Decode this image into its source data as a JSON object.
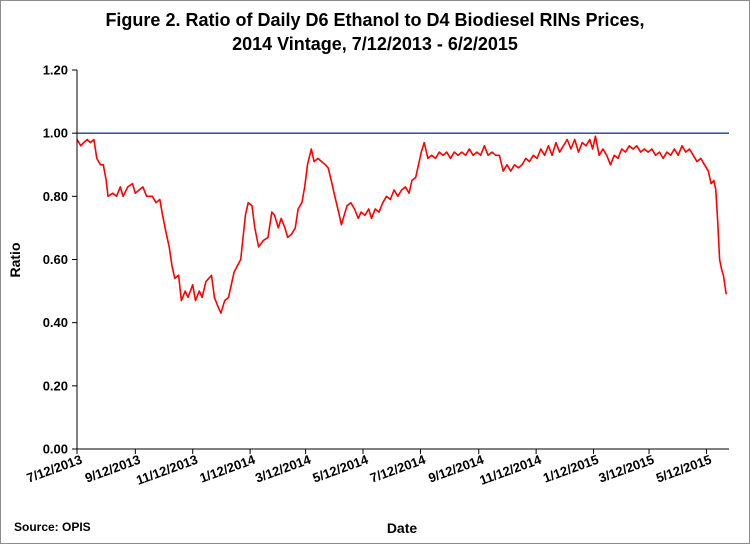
{
  "chart_data": {
    "type": "line",
    "title": "Figure 2. Ratio of Daily D6 Ethanol to D4 Biodiesel RINs Prices,",
    "subtitle": "2014 Vintage, 7/12/2013 - 6/2/2015",
    "xlabel": "Date",
    "ylabel": "Ratio",
    "source": "Source: OPIS",
    "ylim": [
      0,
      1.2
    ],
    "y_ticks": [
      "0.00",
      "0.20",
      "0.40",
      "0.60",
      "0.80",
      "1.00",
      "1.20"
    ],
    "x_ticks": [
      "7/12/2013",
      "9/12/2013",
      "11/12/2013",
      "1/12/2014",
      "3/12/2014",
      "5/12/2014",
      "7/12/2014",
      "9/12/2014",
      "11/12/2014",
      "1/12/2015",
      "3/12/2015",
      "5/12/2015"
    ],
    "xlim": [
      "2013-07-12",
      "2015-06-05"
    ],
    "grid": false,
    "legend": "none",
    "reference_line": {
      "y": 1.0,
      "color": "#1f3f7a"
    },
    "series": [
      {
        "color": "#ff0000",
        "points": [
          [
            "2013-07-12",
            0.98
          ],
          [
            "2013-07-16",
            0.96
          ],
          [
            "2013-07-19",
            0.97
          ],
          [
            "2013-07-23",
            0.98
          ],
          [
            "2013-07-26",
            0.97
          ],
          [
            "2013-07-30",
            0.98
          ],
          [
            "2013-08-02",
            0.92
          ],
          [
            "2013-08-06",
            0.9
          ],
          [
            "2013-08-09",
            0.9
          ],
          [
            "2013-08-12",
            0.85
          ],
          [
            "2013-08-14",
            0.8
          ],
          [
            "2013-08-19",
            0.81
          ],
          [
            "2013-08-23",
            0.8
          ],
          [
            "2013-08-27",
            0.83
          ],
          [
            "2013-08-30",
            0.8
          ],
          [
            "2013-09-04",
            0.83
          ],
          [
            "2013-09-09",
            0.84
          ],
          [
            "2013-09-12",
            0.81
          ],
          [
            "2013-09-16",
            0.82
          ],
          [
            "2013-09-20",
            0.83
          ],
          [
            "2013-09-24",
            0.8
          ],
          [
            "2013-09-30",
            0.8
          ],
          [
            "2013-10-04",
            0.78
          ],
          [
            "2013-10-08",
            0.79
          ],
          [
            "2013-10-11",
            0.74
          ],
          [
            "2013-10-15",
            0.68
          ],
          [
            "2013-10-18",
            0.64
          ],
          [
            "2013-10-21",
            0.58
          ],
          [
            "2013-10-24",
            0.54
          ],
          [
            "2013-10-28",
            0.55
          ],
          [
            "2013-10-31",
            0.47
          ],
          [
            "2013-11-04",
            0.5
          ],
          [
            "2013-11-07",
            0.48
          ],
          [
            "2013-11-12",
            0.52
          ],
          [
            "2013-11-15",
            0.47
          ],
          [
            "2013-11-19",
            0.5
          ],
          [
            "2013-11-22",
            0.48
          ],
          [
            "2013-11-26",
            0.53
          ],
          [
            "2013-12-02",
            0.55
          ],
          [
            "2013-12-05",
            0.48
          ],
          [
            "2013-12-09",
            0.45
          ],
          [
            "2013-12-12",
            0.43
          ],
          [
            "2013-12-16",
            0.47
          ],
          [
            "2013-12-20",
            0.48
          ],
          [
            "2013-12-26",
            0.56
          ],
          [
            "2014-01-02",
            0.6
          ],
          [
            "2014-01-07",
            0.74
          ],
          [
            "2014-01-10",
            0.78
          ],
          [
            "2014-01-14",
            0.77
          ],
          [
            "2014-01-17",
            0.7
          ],
          [
            "2014-01-21",
            0.64
          ],
          [
            "2014-01-26",
            0.66
          ],
          [
            "2014-01-31",
            0.67
          ],
          [
            "2014-02-04",
            0.75
          ],
          [
            "2014-02-07",
            0.74
          ],
          [
            "2014-02-11",
            0.7
          ],
          [
            "2014-02-14",
            0.73
          ],
          [
            "2014-02-18",
            0.7
          ],
          [
            "2014-02-21",
            0.67
          ],
          [
            "2014-02-25",
            0.68
          ],
          [
            "2014-03-01",
            0.7
          ],
          [
            "2014-03-04",
            0.76
          ],
          [
            "2014-03-08",
            0.78
          ],
          [
            "2014-03-11",
            0.83
          ],
          [
            "2014-03-14",
            0.9
          ],
          [
            "2014-03-18",
            0.95
          ],
          [
            "2014-03-21",
            0.91
          ],
          [
            "2014-03-25",
            0.92
          ],
          [
            "2014-03-29",
            0.91
          ],
          [
            "2014-04-02",
            0.9
          ],
          [
            "2014-04-05",
            0.89
          ],
          [
            "2014-04-09",
            0.84
          ],
          [
            "2014-04-12",
            0.8
          ],
          [
            "2014-04-16",
            0.75
          ],
          [
            "2014-04-19",
            0.71
          ],
          [
            "2014-04-22",
            0.74
          ],
          [
            "2014-04-25",
            0.77
          ],
          [
            "2014-04-29",
            0.78
          ],
          [
            "2014-05-03",
            0.76
          ],
          [
            "2014-05-07",
            0.73
          ],
          [
            "2014-05-10",
            0.75
          ],
          [
            "2014-05-14",
            0.74
          ],
          [
            "2014-05-18",
            0.76
          ],
          [
            "2014-05-21",
            0.73
          ],
          [
            "2014-05-25",
            0.76
          ],
          [
            "2014-05-29",
            0.75
          ],
          [
            "2014-06-02",
            0.78
          ],
          [
            "2014-06-06",
            0.8
          ],
          [
            "2014-06-10",
            0.79
          ],
          [
            "2014-06-14",
            0.82
          ],
          [
            "2014-06-18",
            0.8
          ],
          [
            "2014-06-22",
            0.82
          ],
          [
            "2014-06-26",
            0.83
          ],
          [
            "2014-06-30",
            0.81
          ],
          [
            "2014-07-03",
            0.85
          ],
          [
            "2014-07-07",
            0.86
          ],
          [
            "2014-07-10",
            0.9
          ],
          [
            "2014-07-13",
            0.94
          ],
          [
            "2014-07-16",
            0.97
          ],
          [
            "2014-07-20",
            0.92
          ],
          [
            "2014-07-24",
            0.93
          ],
          [
            "2014-07-28",
            0.92
          ],
          [
            "2014-08-01",
            0.94
          ],
          [
            "2014-08-05",
            0.93
          ],
          [
            "2014-08-09",
            0.94
          ],
          [
            "2014-08-13",
            0.92
          ],
          [
            "2014-08-17",
            0.94
          ],
          [
            "2014-08-21",
            0.93
          ],
          [
            "2014-08-25",
            0.94
          ],
          [
            "2014-08-29",
            0.93
          ],
          [
            "2014-09-02",
            0.95
          ],
          [
            "2014-09-06",
            0.93
          ],
          [
            "2014-09-10",
            0.94
          ],
          [
            "2014-09-14",
            0.93
          ],
          [
            "2014-09-18",
            0.96
          ],
          [
            "2014-09-22",
            0.93
          ],
          [
            "2014-09-26",
            0.94
          ],
          [
            "2014-09-30",
            0.93
          ],
          [
            "2014-10-04",
            0.93
          ],
          [
            "2014-10-08",
            0.88
          ],
          [
            "2014-10-12",
            0.9
          ],
          [
            "2014-10-16",
            0.88
          ],
          [
            "2014-10-20",
            0.9
          ],
          [
            "2014-10-24",
            0.89
          ],
          [
            "2014-10-28",
            0.9
          ],
          [
            "2014-11-01",
            0.92
          ],
          [
            "2014-11-05",
            0.91
          ],
          [
            "2014-11-09",
            0.93
          ],
          [
            "2014-11-13",
            0.92
          ],
          [
            "2014-11-17",
            0.95
          ],
          [
            "2014-11-21",
            0.93
          ],
          [
            "2014-11-25",
            0.96
          ],
          [
            "2014-11-29",
            0.93
          ],
          [
            "2014-12-03",
            0.97
          ],
          [
            "2014-12-07",
            0.94
          ],
          [
            "2014-12-11",
            0.96
          ],
          [
            "2014-12-15",
            0.98
          ],
          [
            "2014-12-19",
            0.95
          ],
          [
            "2014-12-23",
            0.98
          ],
          [
            "2014-12-27",
            0.94
          ],
          [
            "2014-12-31",
            0.97
          ],
          [
            "2015-01-04",
            0.96
          ],
          [
            "2015-01-08",
            0.98
          ],
          [
            "2015-01-11",
            0.95
          ],
          [
            "2015-01-14",
            0.99
          ],
          [
            "2015-01-18",
            0.93
          ],
          [
            "2015-01-22",
            0.95
          ],
          [
            "2015-01-26",
            0.93
          ],
          [
            "2015-01-30",
            0.9
          ],
          [
            "2015-02-03",
            0.93
          ],
          [
            "2015-02-07",
            0.92
          ],
          [
            "2015-02-11",
            0.95
          ],
          [
            "2015-02-15",
            0.94
          ],
          [
            "2015-02-19",
            0.96
          ],
          [
            "2015-02-23",
            0.95
          ],
          [
            "2015-02-27",
            0.96
          ],
          [
            "2015-03-03",
            0.94
          ],
          [
            "2015-03-07",
            0.95
          ],
          [
            "2015-03-11",
            0.94
          ],
          [
            "2015-03-15",
            0.95
          ],
          [
            "2015-03-19",
            0.93
          ],
          [
            "2015-03-23",
            0.94
          ],
          [
            "2015-03-27",
            0.92
          ],
          [
            "2015-03-31",
            0.94
          ],
          [
            "2015-04-04",
            0.93
          ],
          [
            "2015-04-08",
            0.95
          ],
          [
            "2015-04-12",
            0.93
          ],
          [
            "2015-04-16",
            0.96
          ],
          [
            "2015-04-20",
            0.94
          ],
          [
            "2015-04-24",
            0.95
          ],
          [
            "2015-04-28",
            0.93
          ],
          [
            "2015-05-02",
            0.91
          ],
          [
            "2015-05-06",
            0.92
          ],
          [
            "2015-05-10",
            0.9
          ],
          [
            "2015-05-14",
            0.88
          ],
          [
            "2015-05-17",
            0.84
          ],
          [
            "2015-05-20",
            0.85
          ],
          [
            "2015-05-22",
            0.82
          ],
          [
            "2015-05-24",
            0.72
          ],
          [
            "2015-05-26",
            0.6
          ],
          [
            "2015-05-28",
            0.57
          ],
          [
            "2015-05-30",
            0.55
          ],
          [
            "2015-06-02",
            0.49
          ]
        ]
      }
    ]
  }
}
